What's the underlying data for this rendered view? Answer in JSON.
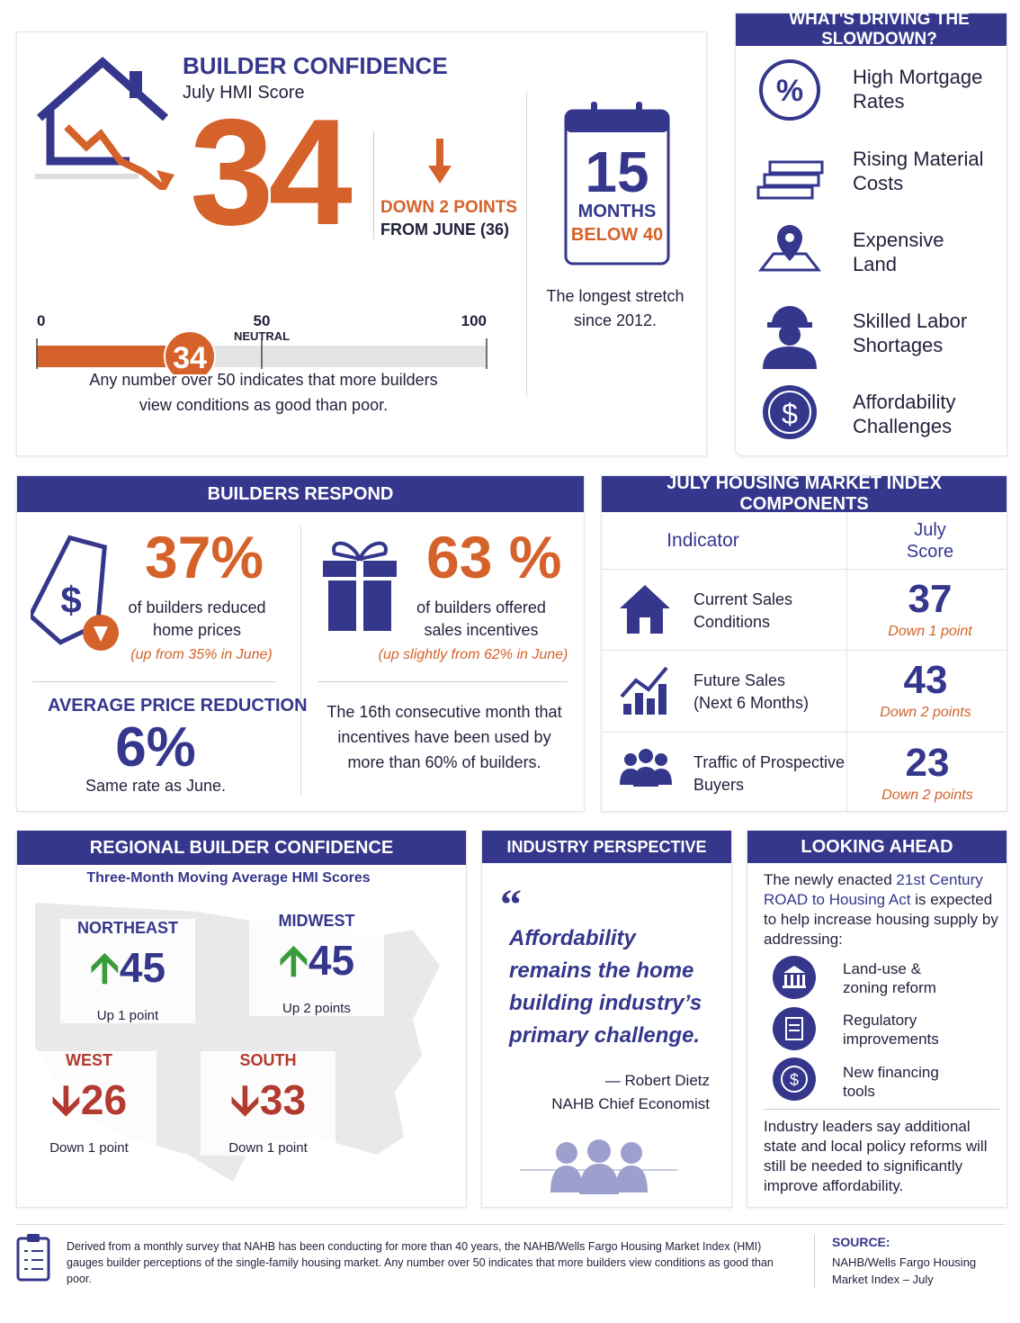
{
  "builder_confidence": {
    "title": "BUILDER CONFIDENCE",
    "subtitle": "July HMI Score",
    "score": 34,
    "change": "DOWN 2 POINTS",
    "change_detail": "FROM JUNE (36)",
    "gauge": {
      "range": [
        0,
        100
      ],
      "ticks": [
        0,
        50,
        100
      ],
      "neutral_label": "NEUTRAL"
    },
    "note": "Any number over 50 indicates that more builders view conditions as good than poor."
  },
  "months_below": {
    "number": 15,
    "line1": "MONTHS",
    "line2": "BELOW 40",
    "note": "The longest stretch since 2012."
  },
  "drivers": {
    "title": "WHAT'S DRIVING THE SLOWDOWN?",
    "items": [
      "High Mortgage Rates",
      "Rising Material Costs",
      "Expensive Land",
      "Skilled Labor Shortages",
      "Affordability Challenges"
    ]
  },
  "builders_respond": {
    "title": "BUILDERS RESPOND",
    "reduced": {
      "percent": "37%",
      "text": "of builders reduced home prices",
      "note": "(up from 35% in June)"
    },
    "incentives": {
      "percent": "63 %",
      "text": "of builders offered sales incentives",
      "note": "(up slightly from 62% in June)"
    },
    "avg_reduction": {
      "label": "AVERAGE PRICE REDUCTION",
      "percent": "6%",
      "note": "Same rate as June."
    },
    "incentive_note": "The 16th consecutive month that incentives have been used by more than 60% of builders."
  },
  "components": {
    "title": "JULY HOUSING MARKET INDEX COMPONENTS",
    "headers": [
      "Indicator",
      "July Score"
    ],
    "rows": [
      {
        "indicator": "Current Sales Conditions",
        "score": 37,
        "change": "Down 1 point"
      },
      {
        "indicator": "Future Sales (Next 6 Months)",
        "score": 43,
        "change": "Down 2 points"
      },
      {
        "indicator": "Traffic of Prospective Buyers",
        "score": 23,
        "change": "Down 2 points"
      }
    ]
  },
  "regional": {
    "title": "REGIONAL BUILDER CONFIDENCE",
    "subtitle": "Three-Month Moving Average HMI Scores",
    "regions": [
      {
        "name": "NORTHEAST",
        "score": 45,
        "change": "Up 1 point"
      },
      {
        "name": "MIDWEST",
        "score": 45,
        "change": "Up 2 points"
      },
      {
        "name": "WEST",
        "score": 26,
        "change": "Down 1 point"
      },
      {
        "name": "SOUTH",
        "score": 33,
        "change": "Down 1 point"
      }
    ]
  },
  "industry": {
    "title": "INDUSTRY PERSPECTIVE",
    "quote": "Affordability remains the home building industry’s primary challenge.",
    "author": "— Robert Dietz",
    "role": "NAHB Chief Economist"
  },
  "looking_ahead": {
    "title": "LOOKING AHEAD",
    "intro_start": "The newly enacted ",
    "act": "21st Century ROAD to Housing Act",
    "intro_end": " is expected to help increase housing supply by addressing:",
    "items": [
      "Land-use & zoning reform",
      "Regulatory improvements",
      "New financing tools"
    ],
    "note": "Industry leaders say additional state and local policy reforms will still be needed to significantly improve affordability."
  },
  "footer": {
    "text": "Derived from a monthly survey that NAHB has been conducting for more than 40 years, the NAHB/Wells Fargo Housing Market Index (HMI) gauges builder perceptions of the single-family housing market. Any number over 50 indicates that more builders view conditions as good than poor.",
    "source_label": "SOURCE:",
    "source": "NAHB/Wells Fargo Housing Market Index – July"
  }
}
